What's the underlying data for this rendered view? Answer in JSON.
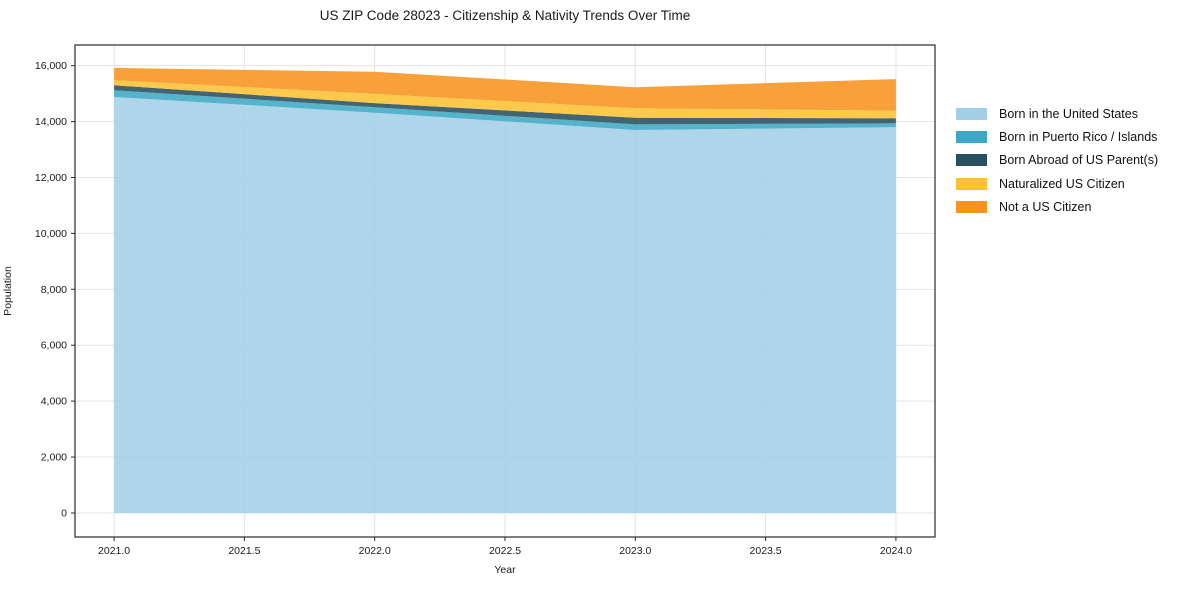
{
  "chart_data": {
    "type": "area",
    "stacked": true,
    "title": "US ZIP Code 28023 - Citizenship & Nativity Trends Over Time",
    "xlabel": "Year",
    "ylabel": "Population",
    "x": [
      2021,
      2022,
      2023,
      2024
    ],
    "series": [
      {
        "name": "Born in the United States",
        "color": "#a3cfe6",
        "values": [
          14880,
          14320,
          13700,
          13800
        ]
      },
      {
        "name": "Born in Puerto Rico / Islands",
        "color": "#3da8c5",
        "values": [
          240,
          195,
          200,
          140
        ]
      },
      {
        "name": "Born Abroad of US Parent(s)",
        "color": "#29505f",
        "values": [
          180,
          145,
          240,
          180
        ]
      },
      {
        "name": "Naturalized US Citizen",
        "color": "#fcc233",
        "values": [
          180,
          330,
          340,
          270
        ]
      },
      {
        "name": "Not a US Citizen",
        "color": "#f7941f",
        "values": [
          440,
          790,
          750,
          1130
        ]
      }
    ],
    "totals": [
      15920,
      15780,
      15230,
      15520
    ],
    "xlim": [
      2020.85,
      2024.15
    ],
    "ylim": [
      -860,
      16740
    ],
    "x_ticks": [
      2021.0,
      2021.5,
      2022.0,
      2022.5,
      2023.0,
      2023.5,
      2024.0
    ],
    "x_tick_labels": [
      "2021.0",
      "2021.5",
      "2022.0",
      "2022.5",
      "2023.0",
      "2023.5",
      "2024.0"
    ],
    "y_ticks": [
      0,
      2000,
      4000,
      6000,
      8000,
      10000,
      12000,
      14000,
      16000
    ],
    "y_tick_labels": [
      "0",
      "2,000",
      "4,000",
      "6,000",
      "8,000",
      "10,000",
      "12,000",
      "14,000",
      "16,000"
    ],
    "grid": true,
    "grid_color": "#e4e4e4",
    "frame_color": "#2a2a2a",
    "legend_position": "right"
  }
}
